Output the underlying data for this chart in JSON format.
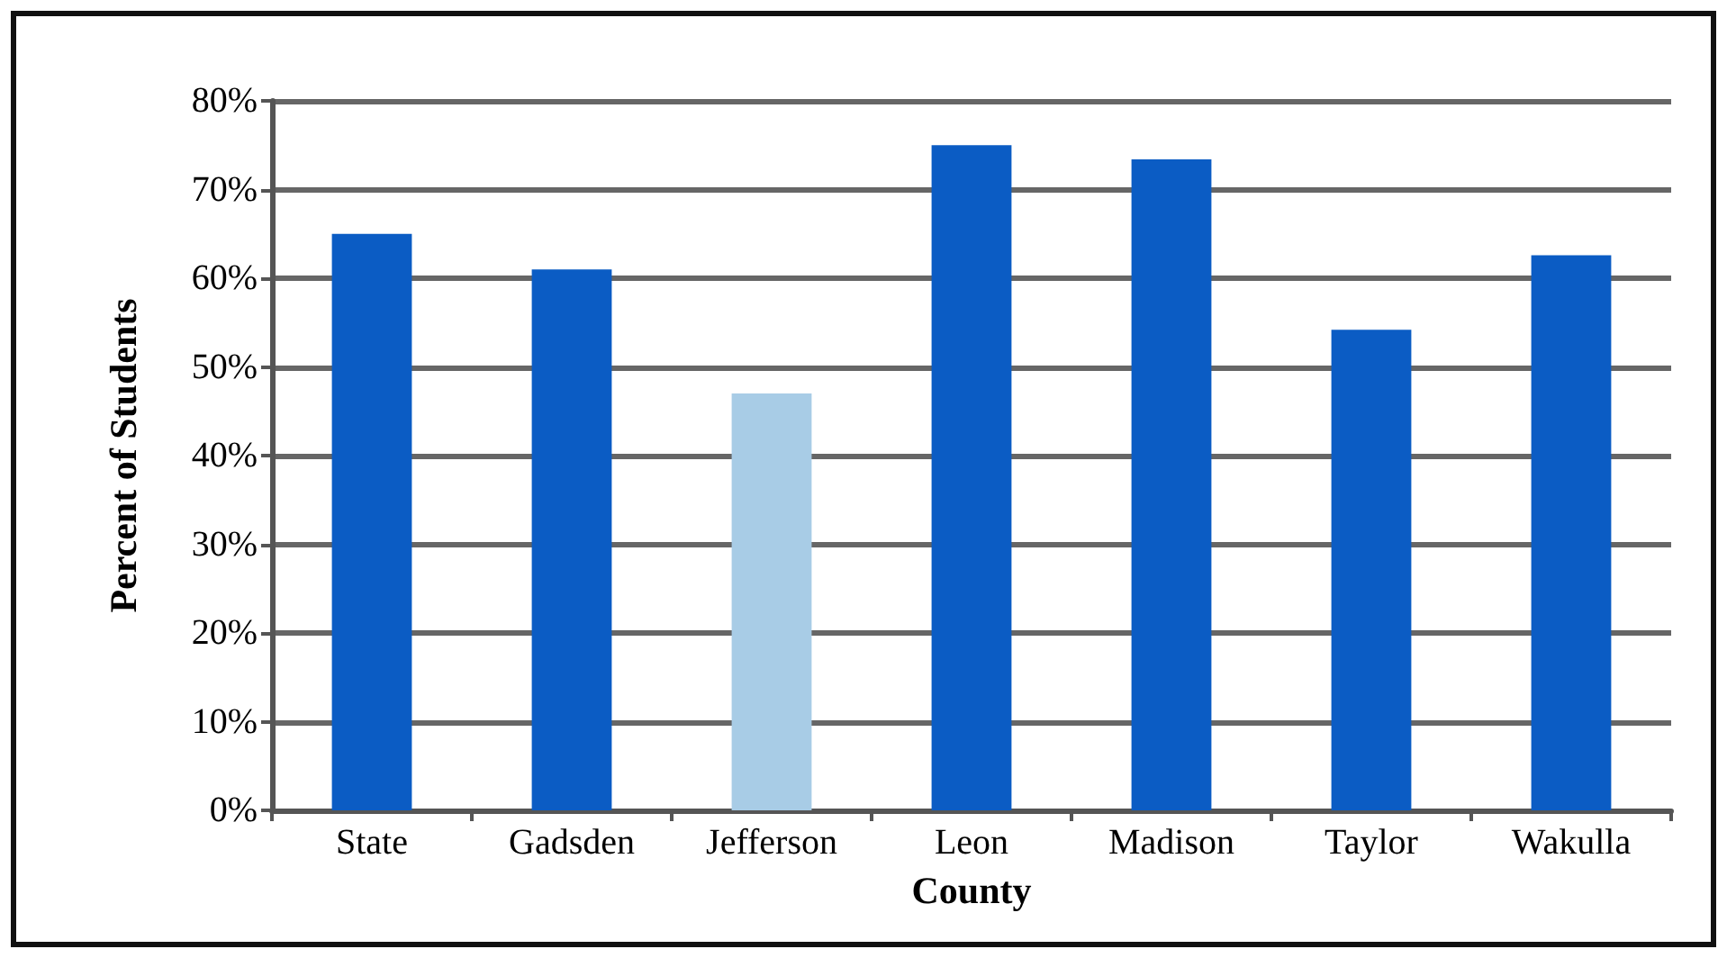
{
  "chart_data": {
    "type": "bar",
    "xlabel": "County",
    "ylabel": "Percent of Students",
    "categories": [
      "State",
      "Gadsden",
      "Jefferson",
      "Leon",
      "Madison",
      "Taylor",
      "Wakulla"
    ],
    "values": [
      65,
      61,
      47,
      75,
      73.4,
      54.2,
      62.6
    ],
    "colors": [
      "#0b5cc4",
      "#0b5cc4",
      "#a8cce6",
      "#0b5cc4",
      "#0b5cc4",
      "#0b5cc4",
      "#0b5cc4"
    ],
    "ylim": [
      0,
      80
    ],
    "yticks": [
      {
        "value": 0,
        "label": "0%"
      },
      {
        "value": 10,
        "label": "10%"
      },
      {
        "value": 20,
        "label": "20%"
      },
      {
        "value": 30,
        "label": "30%"
      },
      {
        "value": 40,
        "label": "40%"
      },
      {
        "value": 50,
        "label": "50%"
      },
      {
        "value": 60,
        "label": "60%"
      },
      {
        "value": 70,
        "label": "70%"
      },
      {
        "value": 80,
        "label": "80%"
      }
    ],
    "grid": "y"
  }
}
